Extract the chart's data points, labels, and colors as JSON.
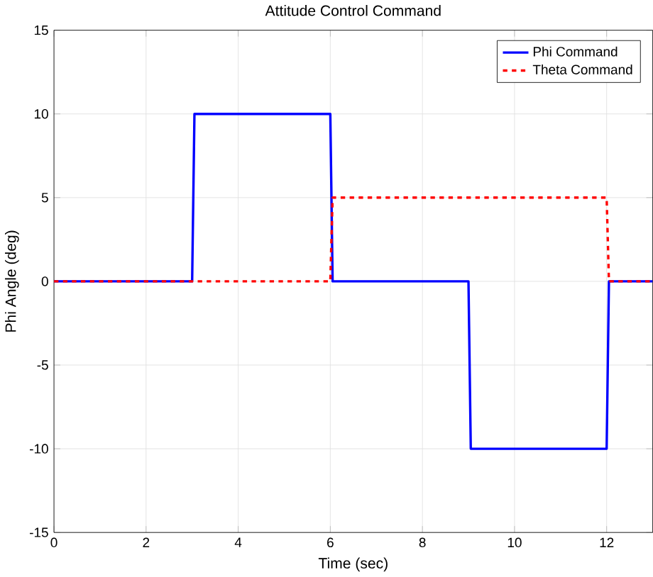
{
  "chart_data": {
    "type": "line",
    "title": "Attitude Control Command",
    "xlabel": "Time (sec)",
    "ylabel": "Phi Angle (deg)",
    "series": [
      {
        "name": "Phi Command",
        "color": "#0000ff",
        "line_style": "solid",
        "x": [
          0,
          3,
          3.05,
          6,
          6.05,
          9,
          9.05,
          12,
          12.05,
          13
        ],
        "values": [
          0,
          0,
          10,
          10,
          0,
          0,
          -10,
          -10,
          0,
          0
        ]
      },
      {
        "name": "Theta Command",
        "color": "#ff0000",
        "line_style": "dashed",
        "x": [
          0,
          6,
          6.05,
          12,
          12.05,
          13
        ],
        "values": [
          0,
          0,
          5,
          5,
          0,
          0
        ]
      }
    ],
    "xlim": [
      0,
      13
    ],
    "xticks": [
      0,
      2,
      4,
      6,
      8,
      10,
      12
    ],
    "ylim": [
      -15,
      15
    ],
    "yticks": [
      -15,
      -10,
      -5,
      0,
      5,
      10,
      15
    ],
    "grid": true,
    "legend": "top right"
  }
}
